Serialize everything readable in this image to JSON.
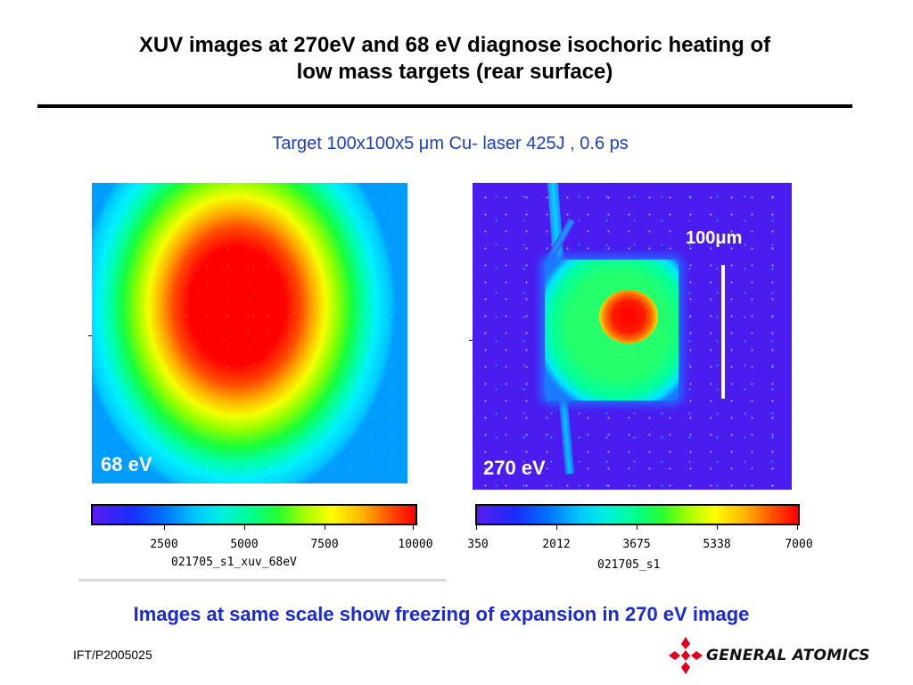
{
  "slide": {
    "title_line1": "XUV images at 270eV and  68 eV diagnose isochoric heating of",
    "title_line2": "low mass targets (rear surface)",
    "subtitle": "Target 100x100x5 μm Cu- laser 425J , 0.6 ps",
    "conclusion": "Images at same scale show freezing of expansion in 270 eV image",
    "footer_id": "IFT/P2005025",
    "logo_text": "GENERAL ATOMICS"
  },
  "image_left": {
    "label": "68 eV",
    "colorbar": {
      "ticks": [
        "2500",
        "5000",
        "7500",
        "10000"
      ],
      "name": "021705_s1_xuv_68eV"
    }
  },
  "image_right": {
    "label": "270 eV",
    "scale_bar_label": "100μm",
    "colorbar": {
      "ticks": [
        "350",
        "2012",
        "3675",
        "5338",
        "7000"
      ],
      "name": "021705_s1"
    }
  },
  "colors": {
    "title_rule": "#000000",
    "subtitle_text": "#1a3fcc",
    "conclusion_text": "#1a2ad6",
    "logo_red": "#e3001b"
  },
  "icons": {
    "logo": "general-atomics-cross-icon"
  }
}
